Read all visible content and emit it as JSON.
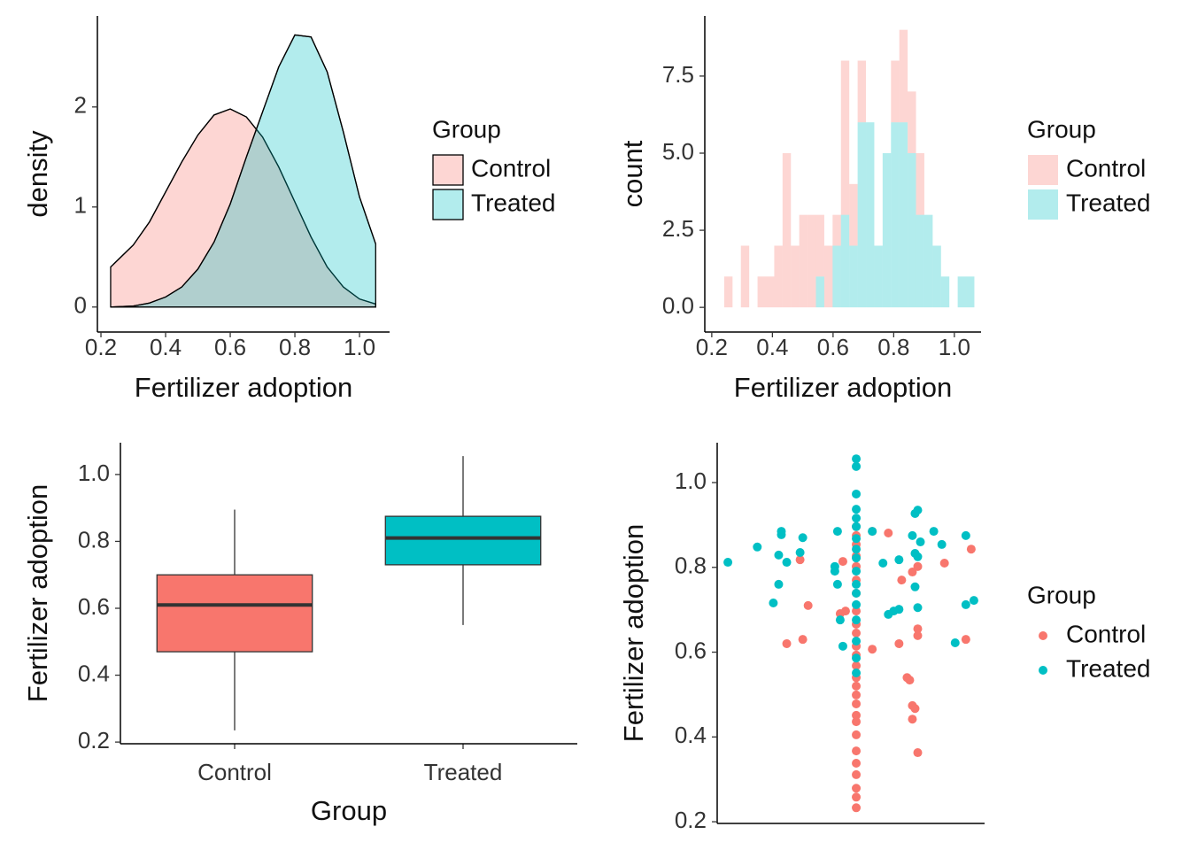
{
  "chart_data": [
    {
      "type": "density",
      "xlabel": "Fertilizer adoption",
      "ylabel": "density",
      "legend_title": "Group",
      "x": [
        0.23,
        0.3,
        0.35,
        0.4,
        0.45,
        0.5,
        0.55,
        0.6,
        0.65,
        0.7,
        0.75,
        0.8,
        0.85,
        0.9,
        0.95,
        1.0,
        1.05
      ],
      "series": [
        {
          "name": "Control",
          "color": "#F8766D",
          "values": [
            0.4,
            0.62,
            0.85,
            1.15,
            1.45,
            1.72,
            1.92,
            1.98,
            1.9,
            1.7,
            1.4,
            1.05,
            0.7,
            0.4,
            0.2,
            0.08,
            0.03
          ]
        },
        {
          "name": "Treated",
          "color": "#00BFC4",
          "values": [
            0,
            0.01,
            0.04,
            0.1,
            0.2,
            0.38,
            0.65,
            1.03,
            1.5,
            1.95,
            2.4,
            2.72,
            2.7,
            2.35,
            1.75,
            1.1,
            0.63
          ]
        }
      ],
      "xlim": [
        0.189,
        1.093
      ],
      "xticks": [
        0.2,
        0.4,
        0.6,
        0.8,
        {
          "value": 1,
          "label": "1.0"
        }
      ],
      "ylim": [
        -0.25,
        2.91
      ],
      "yticks": [
        0,
        1,
        2
      ]
    },
    {
      "type": "histogram",
      "xlabel": "Fertilizer adoption",
      "ylabel": "count",
      "legend_title": "Group",
      "bins": [
        0.241,
        0.2685,
        0.296,
        0.3235,
        0.351,
        0.3785,
        0.406,
        0.4335,
        0.461,
        0.4885,
        0.516,
        0.5435,
        0.571,
        0.5985,
        0.626,
        0.6535,
        0.681,
        0.7085,
        0.736,
        0.7635,
        0.791,
        0.8185,
        0.846,
        0.8735,
        0.901,
        0.9285,
        0.956,
        0.9835,
        1.011,
        1.0385,
        1.066
      ],
      "series": [
        {
          "name": "Control",
          "color": "#F8766D",
          "values": [
            1,
            0,
            2,
            0,
            1,
            1,
            2,
            5,
            2,
            3,
            3,
            2,
            2,
            1,
            5,
            2,
            2,
            0,
            0,
            0,
            2,
            3,
            2,
            2,
            0,
            0,
            0,
            0,
            0,
            0
          ]
        },
        {
          "name": "Treated",
          "color": "#00BFC4",
          "values": [
            0,
            0,
            0,
            0,
            0,
            0,
            0,
            0,
            0,
            0,
            0,
            1,
            0,
            2,
            3,
            2,
            6,
            6,
            2,
            5,
            6,
            6,
            5,
            3,
            3,
            2,
            1,
            0,
            1,
            1
          ]
        }
      ],
      "xlim": [
        0.177,
        1.088
      ],
      "xticks": [
        0.2,
        0.4,
        0.6,
        0.8,
        {
          "value": 1,
          "label": "1.0"
        }
      ],
      "ylim": [
        -0.8,
        9.45
      ],
      "yticks": [
        {
          "value": 0,
          "label": "0.0"
        },
        2.5,
        {
          "value": 5,
          "label": "5.0"
        },
        7.5
      ]
    },
    {
      "type": "box",
      "xlabel": "Group",
      "ylabel": "Fertilizer adoption",
      "categories": [
        "Control",
        "Treated"
      ],
      "boxes": [
        {
          "color": "#F8766D",
          "min": 0.235,
          "q1": 0.47,
          "median": 0.61,
          "q3": 0.7,
          "max": 0.895
        },
        {
          "color": "#00BFC4",
          "min": 0.55,
          "q1": 0.73,
          "median": 0.81,
          "q3": 0.875,
          "max": 1.055
        }
      ],
      "ylim": [
        0.195,
        1.095
      ],
      "yticks": [
        0.2,
        0.4,
        0.6,
        0.8,
        {
          "value": 1,
          "label": "1.0"
        }
      ]
    },
    {
      "type": "scatter",
      "ylabel": "Fertilizer adoption",
      "legend_title": "Group",
      "series": [
        {
          "name": "Control",
          "color": "#F8766D",
          "x": [
            0.31,
            0.34,
            0.26,
            0.32,
            0.46,
            0.48,
            0.47,
            0.58,
            0.64,
            0.58,
            0.69,
            0.68,
            0.73,
            0.75,
            0.75,
            0.75,
            0.71,
            0.72,
            0.73,
            0.74,
            0.73,
            0.75,
            0.85,
            0.95,
            0.93,
            0.52,
            0.52,
            0.52,
            0.52,
            0.52,
            0.52,
            0.52,
            0.52,
            0.52,
            0.52,
            0.52,
            0.52,
            0.52,
            0.52,
            0.52,
            0.52,
            0.52,
            0.52,
            0.52,
            0.52,
            0.52,
            0.52,
            0.52,
            0.52,
            0.52,
            0.52
          ],
          "y": [
            0.818,
            0.71,
            0.62,
            0.63,
            0.691,
            0.697,
            0.814,
            0.885,
            0.881,
            0.607,
            0.77,
            0.62,
            0.789,
            0.802,
            0.655,
            0.639,
            0.54,
            0.534,
            0.474,
            0.467,
            0.442,
            0.363,
            0.81,
            0.843,
            0.63,
            0.896,
            0.875,
            0.854,
            0.827,
            0.802,
            0.77,
            0.739,
            0.697,
            0.666,
            0.645,
            0.614,
            0.593,
            0.568,
            0.54,
            0.52,
            0.499,
            0.478,
            0.451,
            0.436,
            0.405,
            0.367,
            0.338,
            0.311,
            0.279,
            0.258,
            0.233
          ]
        },
        {
          "name": "Treated",
          "color": "#00BFC4",
          "x": [
            0.04,
            0.15,
            0.24,
            0.24,
            0.32,
            0.21,
            0.23,
            0.26,
            0.23,
            0.31,
            0.45,
            0.44,
            0.44,
            0.45,
            0.46,
            0.47,
            0.58,
            0.62,
            0.68,
            0.66,
            0.64,
            0.68,
            0.74,
            0.75,
            0.74,
            0.73,
            0.74,
            0.75,
            0.75,
            0.81,
            0.84,
            0.93,
            0.96,
            0.93,
            0.89,
            0.76,
            0.52,
            0.52,
            0.52,
            0.52,
            0.52,
            0.52,
            0.52,
            0.52,
            0.52,
            0.52,
            0.52,
            0.52,
            0.52,
            0.52,
            0.52,
            0.52,
            0.52
          ],
          "y": [
            0.812,
            0.848,
            0.885,
            0.877,
            0.87,
            0.716,
            0.76,
            0.812,
            0.829,
            0.835,
            0.885,
            0.802,
            0.791,
            0.76,
            0.676,
            0.614,
            0.885,
            0.81,
            0.818,
            0.697,
            0.689,
            0.701,
            0.833,
            0.935,
            0.927,
            0.875,
            0.754,
            0.705,
            0.825,
            0.885,
            0.854,
            0.875,
            0.722,
            0.712,
            0.622,
            0.86,
            1.056,
            1.038,
            0.973,
            0.937,
            0.916,
            0.896,
            0.868,
            0.843,
            0.822,
            0.791,
            0.76,
            0.739,
            0.712,
            0.676,
            0.626,
            0.586,
            0.551
          ]
        }
      ],
      "xlim": [
        0,
        1
      ],
      "ylim": [
        0.196,
        1.094
      ],
      "yticks": [
        0.2,
        0.4,
        0.6,
        0.8,
        {
          "value": 1,
          "label": "1.0"
        }
      ]
    }
  ]
}
